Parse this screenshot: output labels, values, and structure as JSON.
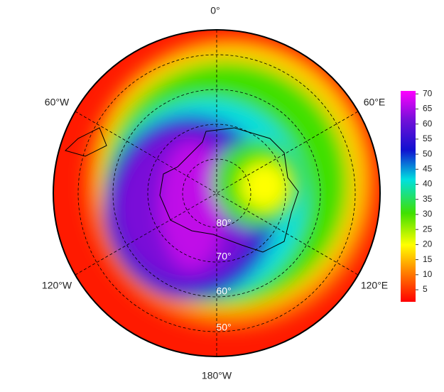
{
  "map": {
    "longitude_labels": [
      "0°",
      "60°E",
      "120°E",
      "180°W",
      "120°W",
      "60°W"
    ],
    "latitude_labels": [
      "80°",
      "70°",
      "60°",
      "50°"
    ],
    "colorbar": {
      "range": [
        1,
        71
      ],
      "ticks": [
        5,
        10,
        15,
        20,
        25,
        30,
        35,
        40,
        45,
        50,
        55,
        60,
        65,
        70
      ]
    }
  }
}
